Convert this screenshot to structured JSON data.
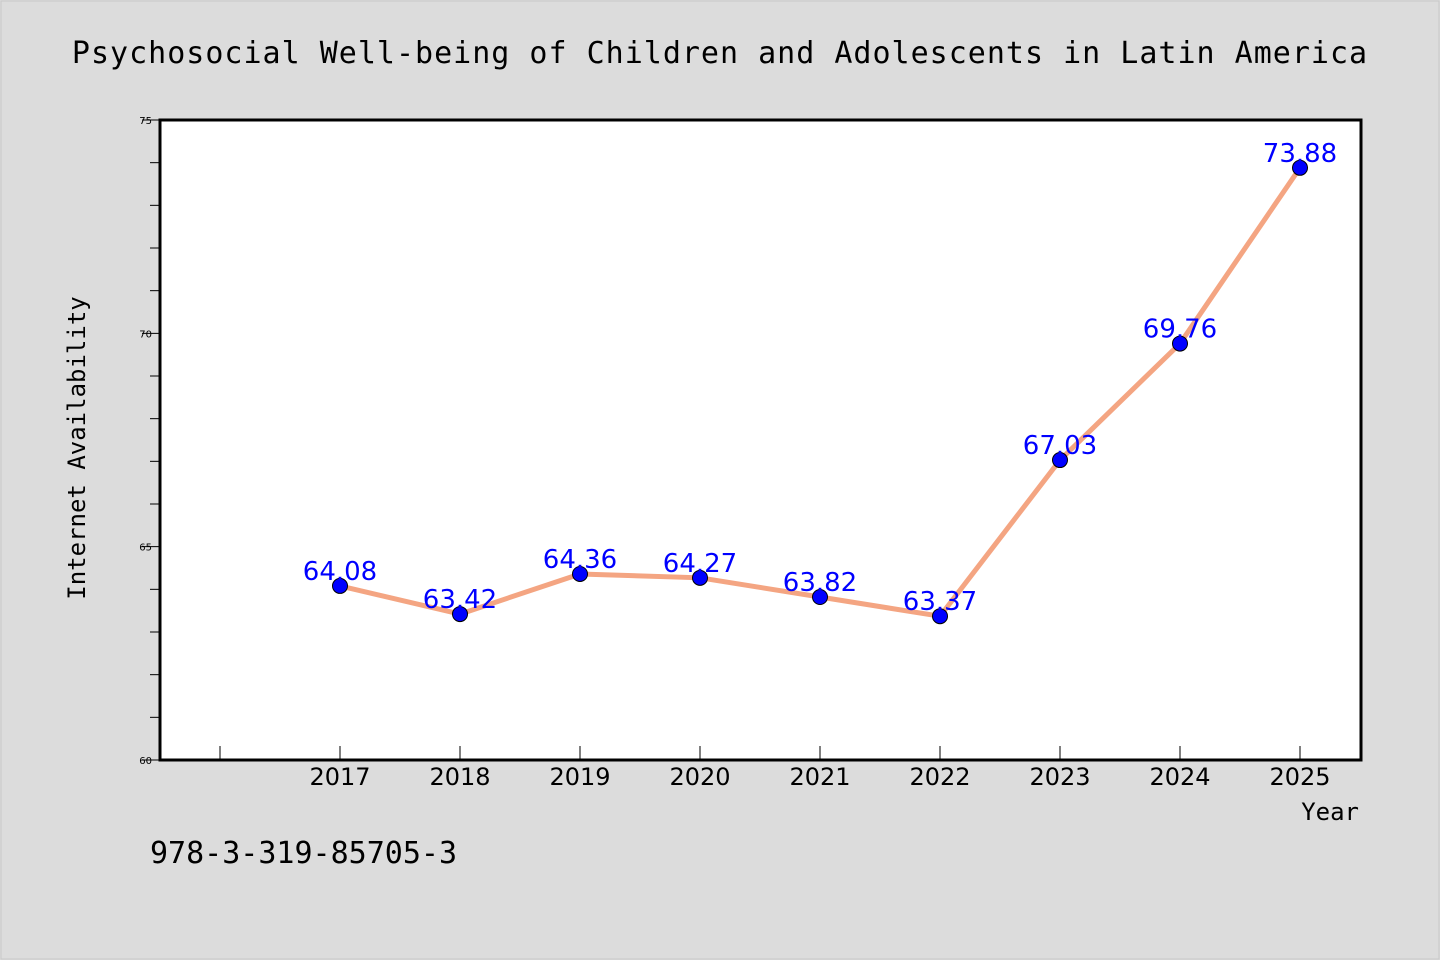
{
  "chart_data": {
    "type": "line",
    "title": "Psychosocial Well-being of Children and Adolescents in Latin America",
    "xlabel": "Year",
    "ylabel": "Internet Availability",
    "x": [
      "2017",
      "2018",
      "2019",
      "2020",
      "2021",
      "2022",
      "2023",
      "2024",
      "2025"
    ],
    "series": [
      {
        "values": [
          64.08,
          63.42,
          64.36,
          64.27,
          63.82,
          63.37,
          67.03,
          69.76,
          73.88
        ]
      }
    ],
    "ylim": [
      60,
      75
    ],
    "yticks": [
      "60",
      "65",
      "70",
      "75"
    ],
    "data_labels": [
      "64.08",
      "63.42",
      "64.36",
      "64.27",
      "63.82",
      "63.37",
      "67.03",
      "69.76",
      "73.88"
    ],
    "grid": false,
    "legend": "none",
    "colors": {
      "line": "#f4a582",
      "marker": "#0000ff",
      "label": "#0000ff",
      "background": "#dcdcdc",
      "plot_background": "#ffffff"
    }
  },
  "footer": {
    "code": "978-3-319-85705-3"
  }
}
